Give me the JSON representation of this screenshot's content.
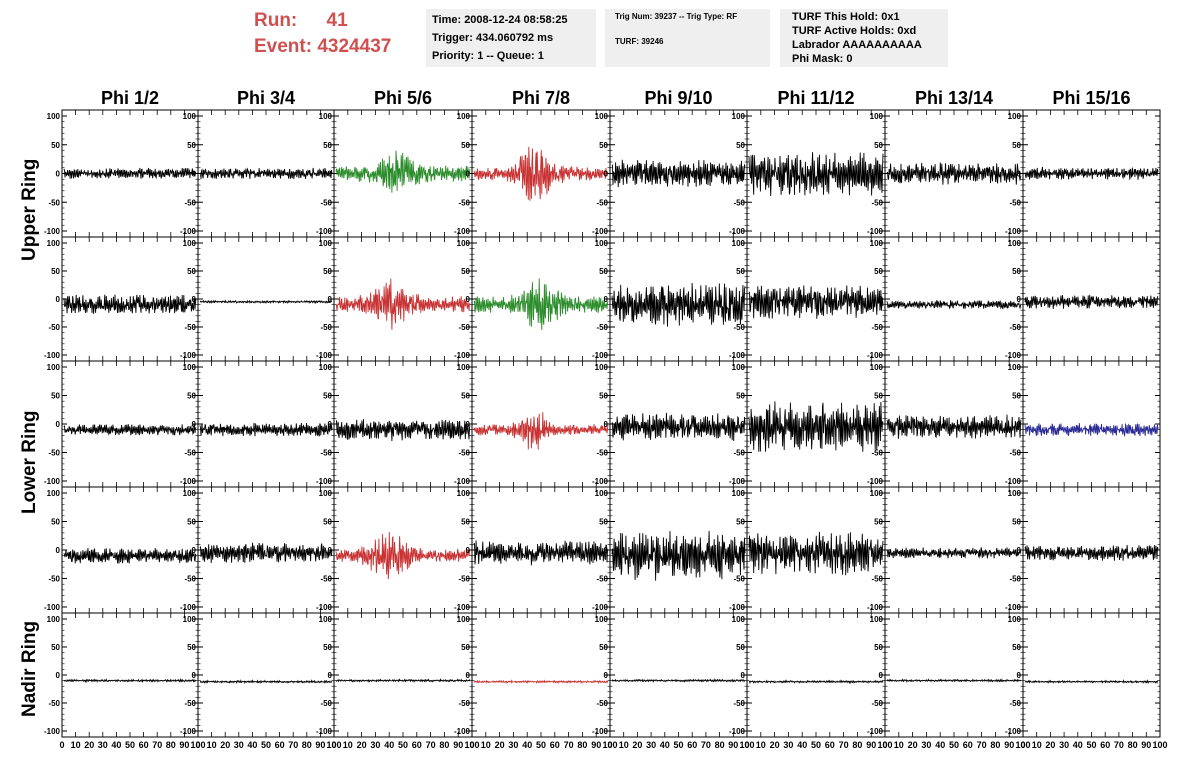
{
  "header": {
    "run_label": "Run:",
    "run_value": "41",
    "event_label": "Event:",
    "event_value": "4324437",
    "time": "Time: 2008-12-24 08:58:25",
    "trigger": "Trigger: 434.060792 ms",
    "priority": "Priority: 1 -- Queue: 1",
    "trig_num": "Trig Num: 39237 -- Trig Type: RF",
    "turf": "TURF: 39246",
    "turf_hold": "TURF This Hold: 0x1",
    "turf_active": "TURF Active Holds: 0xd",
    "labrador": "Labrador AAAAAAAAAA",
    "phi_mask": "Phi Mask: 0"
  },
  "chart_data": {
    "type": "line",
    "columns": [
      "Phi 1/2",
      "Phi 3/4",
      "Phi 5/6",
      "Phi 7/8",
      "Phi 9/10",
      "Phi 11/12",
      "Phi 13/14",
      "Phi 15/16"
    ],
    "rows": [
      "Upper Ring",
      "Lower Ring",
      "Nadir Ring"
    ],
    "ylim": [
      -100,
      100
    ],
    "xlim": [
      0,
      100
    ],
    "y_ticks": [
      -100,
      -50,
      0,
      50,
      100
    ],
    "x_ticks": [
      "0",
      "10",
      "20",
      "30",
      "40",
      "50",
      "60",
      "70",
      "80",
      "90",
      "100"
    ],
    "colors": {
      "default": "#000000",
      "red": "#c83232",
      "green": "#2a8c2a",
      "blue": "#2a2a96"
    },
    "panels": [
      [
        {
          "color": "default",
          "amp": 10,
          "offset": 0
        },
        {
          "color": "default",
          "amp": 10,
          "offset": 0
        },
        {
          "color": "green",
          "amp": 15,
          "offset": 0,
          "burst": {
            "center": 45,
            "amp": 28,
            "width": 14
          }
        },
        {
          "color": "red",
          "amp": 12,
          "offset": 0,
          "burst": {
            "center": 45,
            "amp": 45,
            "width": 14
          }
        },
        {
          "color": "default",
          "amp": 25,
          "offset": 0
        },
        {
          "color": "default",
          "amp": 40,
          "offset": 0
        },
        {
          "color": "default",
          "amp": 20,
          "offset": 0
        },
        {
          "color": "default",
          "amp": 12,
          "offset": 0
        }
      ],
      [
        {
          "color": "default",
          "amp": 18,
          "offset": -10
        },
        {
          "color": "default",
          "amp": 2,
          "offset": -5
        },
        {
          "color": "red",
          "amp": 15,
          "offset": -10,
          "burst": {
            "center": 40,
            "amp": 35,
            "width": 14
          }
        },
        {
          "color": "green",
          "amp": 15,
          "offset": -10,
          "burst": {
            "center": 50,
            "amp": 35,
            "width": 14
          }
        },
        {
          "color": "default",
          "amp": 40,
          "offset": -10
        },
        {
          "color": "default",
          "amp": 32,
          "offset": -5
        },
        {
          "color": "default",
          "amp": 8,
          "offset": -10
        },
        {
          "color": "default",
          "amp": 13,
          "offset": -5
        }
      ],
      [
        {
          "color": "default",
          "amp": 10,
          "offset": -10
        },
        {
          "color": "default",
          "amp": 12,
          "offset": -10
        },
        {
          "color": "default",
          "amp": 20,
          "offset": -10
        },
        {
          "color": "red",
          "amp": 10,
          "offset": -10,
          "burst": {
            "center": 45,
            "amp": 30,
            "width": 12
          }
        },
        {
          "color": "default",
          "amp": 25,
          "offset": -5
        },
        {
          "color": "default",
          "amp": 45,
          "offset": -5
        },
        {
          "color": "default",
          "amp": 22,
          "offset": -5
        },
        {
          "color": "blue",
          "amp": 12,
          "offset": -10
        }
      ],
      [
        {
          "color": "default",
          "amp": 14,
          "offset": -10
        },
        {
          "color": "default",
          "amp": 18,
          "offset": -5
        },
        {
          "color": "red",
          "amp": 12,
          "offset": -10,
          "burst": {
            "center": 40,
            "amp": 40,
            "width": 14
          }
        },
        {
          "color": "default",
          "amp": 22,
          "offset": -5
        },
        {
          "color": "default",
          "amp": 45,
          "offset": -10
        },
        {
          "color": "default",
          "amp": 40,
          "offset": -5
        },
        {
          "color": "default",
          "amp": 10,
          "offset": -5
        },
        {
          "color": "default",
          "amp": 14,
          "offset": -5
        }
      ],
      [
        {
          "color": "default",
          "amp": 2,
          "offset": -10
        },
        {
          "color": "default",
          "amp": 2,
          "offset": -12
        },
        {
          "color": "default",
          "amp": 2,
          "offset": -10
        },
        {
          "color": "red",
          "amp": 2,
          "offset": -12
        },
        {
          "color": "default",
          "amp": 2,
          "offset": -10
        },
        {
          "color": "default",
          "amp": 2,
          "offset": -12
        },
        {
          "color": "default",
          "amp": 2,
          "offset": -10
        },
        {
          "color": "default",
          "amp": 2,
          "offset": -12
        }
      ]
    ]
  }
}
